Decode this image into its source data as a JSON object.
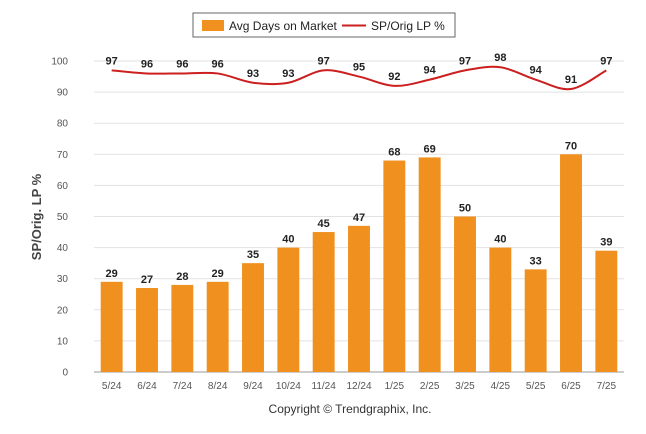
{
  "chart_data": {
    "type": "bar",
    "categories": [
      "5/24",
      "6/24",
      "7/24",
      "8/24",
      "9/24",
      "10/24",
      "11/24",
      "12/24",
      "1/25",
      "2/25",
      "3/25",
      "4/25",
      "5/25",
      "6/25",
      "7/25"
    ],
    "series": [
      {
        "name": "Avg Days on Market",
        "type": "bar",
        "color": "#f0901e",
        "values": [
          29,
          27,
          28,
          29,
          35,
          40,
          45,
          47,
          68,
          69,
          50,
          40,
          33,
          70,
          39
        ]
      },
      {
        "name": "SP/Orig LP %",
        "type": "line",
        "color": "#cc1f1f",
        "values": [
          97,
          96,
          96,
          96,
          93,
          93,
          97,
          95,
          92,
          94,
          97,
          98,
          94,
          91,
          97
        ]
      }
    ],
    "ylabel": "SP/Orig. LP %",
    "ylim": [
      0,
      100
    ],
    "yticks": [
      0,
      10,
      20,
      30,
      40,
      50,
      60,
      70,
      80,
      90,
      100
    ],
    "grid": true,
    "legend": "top-center"
  },
  "footer": {
    "copyright": "Copyright © Trendgraphix, Inc."
  }
}
